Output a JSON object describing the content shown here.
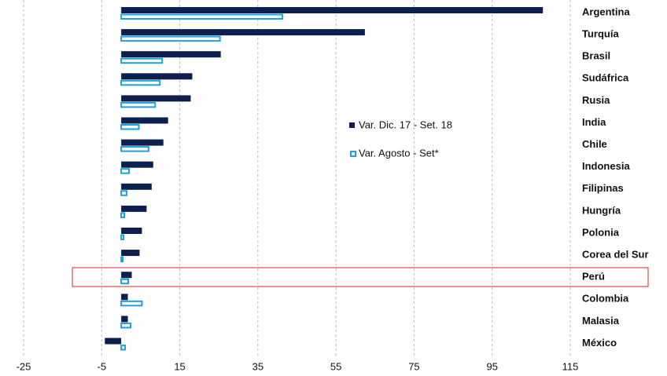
{
  "chart_data": {
    "type": "bar",
    "orientation": "horizontal",
    "categories": [
      "Argentina",
      "Turquía",
      "Brasil",
      "Sudáfrica",
      "Rusia",
      "India",
      "Chile",
      "Indonesia",
      "Filipinas",
      "Hungría",
      "Polonia",
      "Corea del Sur",
      "Perú",
      "Colombia",
      "Malasia",
      "México"
    ],
    "series": [
      {
        "name": "Var. Dic. 17 - Set. 18",
        "color": "#0d1f4f",
        "values": [
          108,
          62.4,
          25.5,
          18.2,
          17.8,
          12,
          10.8,
          8.2,
          7.8,
          6.5,
          5.3,
          4.7,
          2.7,
          1.7,
          1.7,
          -4.2
        ]
      },
      {
        "name": "Var. Agosto - Set*",
        "color": "#1aa3dc",
        "values": [
          41.3,
          25.3,
          10.5,
          9.9,
          8.7,
          4.5,
          7,
          2,
          1.4,
          0.8,
          0.6,
          0.4,
          1.8,
          5.3,
          2.4,
          1
        ]
      }
    ],
    "xlim": [
      -25,
      115
    ],
    "xticks": [
      -25,
      -5,
      15,
      35,
      55,
      75,
      95,
      115
    ],
    "grid": true
  }
}
